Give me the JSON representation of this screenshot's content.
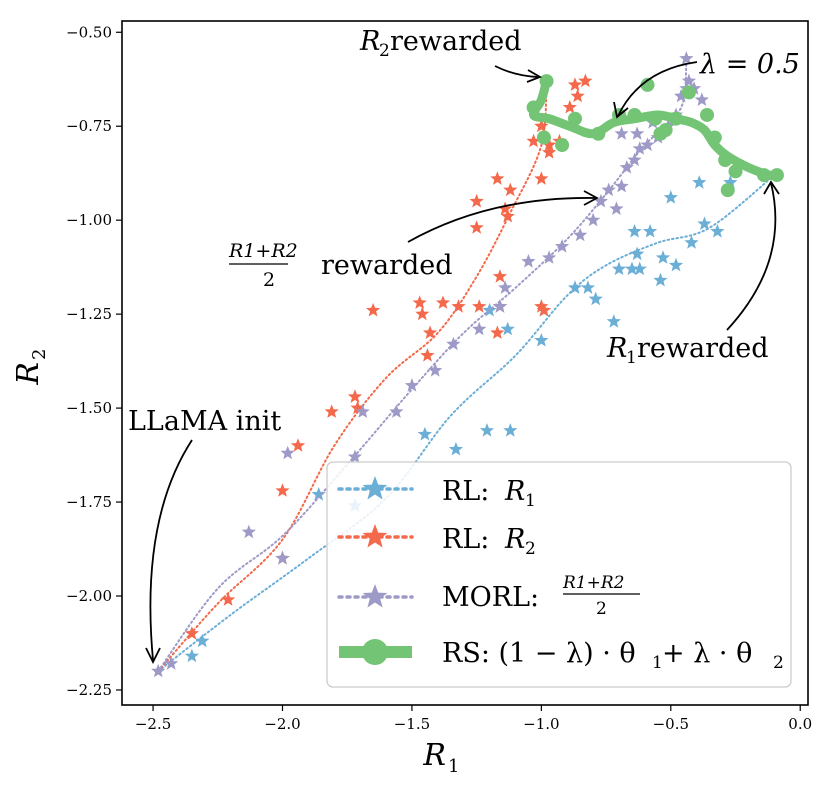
{
  "chart_data": {
    "type": "scatter",
    "xlabel": "R",
    "xlabel_sub": "1",
    "ylabel": "R",
    "ylabel_sub": "2",
    "xlim": [
      -2.62,
      0.03
    ],
    "ylim": [
      -2.29,
      -0.47
    ],
    "xticks": [
      -2.5,
      -2.0,
      -1.5,
      -1.0,
      -0.5,
      0.0
    ],
    "xtick_labels": [
      "−2.5",
      "−2.0",
      "−1.5",
      "−1.0",
      "−0.5",
      "0.0"
    ],
    "yticks": [
      -0.5,
      -0.75,
      -1.0,
      -1.25,
      -1.5,
      -1.75,
      -2.0,
      -2.25
    ],
    "ytick_labels": [
      "−0.50",
      "−0.75",
      "−1.00",
      "−1.25",
      "−1.50",
      "−1.75",
      "−2.00",
      "−2.25"
    ],
    "legend_position": "lower-right",
    "series": [
      {
        "name": "RL: R1",
        "legend_label": "RL: ",
        "legend_math": "R",
        "legend_sub": "1",
        "color": "#6baed6",
        "marker": "star",
        "line": "dotted",
        "points": [
          [
            -2.35,
            -2.16
          ],
          [
            -2.31,
            -2.12
          ],
          [
            -2.0,
            -1.9
          ],
          [
            -1.86,
            -1.73
          ],
          [
            -1.72,
            -1.76
          ],
          [
            -1.45,
            -1.57
          ],
          [
            -1.33,
            -1.61
          ],
          [
            -1.21,
            -1.56
          ],
          [
            -1.12,
            -1.56
          ],
          [
            -1.13,
            -1.29
          ],
          [
            -1.2,
            -1.24
          ],
          [
            -1.0,
            -1.32
          ],
          [
            -0.99,
            -1.24
          ],
          [
            -0.87,
            -1.18
          ],
          [
            -0.82,
            -1.18
          ],
          [
            -0.79,
            -1.21
          ],
          [
            -0.72,
            -1.27
          ],
          [
            -0.7,
            -1.13
          ],
          [
            -0.65,
            -1.13
          ],
          [
            -0.63,
            -1.09
          ],
          [
            -0.62,
            -1.13
          ],
          [
            -0.64,
            -1.03
          ],
          [
            -0.58,
            -1.03
          ],
          [
            -0.54,
            -1.16
          ],
          [
            -0.53,
            -1.1
          ],
          [
            -0.5,
            -0.94
          ],
          [
            -0.48,
            -1.12
          ],
          [
            -0.42,
            -1.06
          ],
          [
            -0.39,
            -0.9
          ],
          [
            -0.37,
            -1.01
          ],
          [
            -0.32,
            -1.03
          ],
          [
            -0.27,
            -0.9
          ]
        ],
        "curve": [
          [
            -2.48,
            -2.2
          ],
          [
            -2.2,
            -2.05
          ],
          [
            -1.9,
            -1.9
          ],
          [
            -1.6,
            -1.74
          ],
          [
            -1.35,
            -1.52
          ],
          [
            -1.1,
            -1.36
          ],
          [
            -0.9,
            -1.2
          ],
          [
            -0.75,
            -1.12
          ],
          [
            -0.55,
            -1.06
          ],
          [
            -0.35,
            -1.02
          ],
          [
            -0.1,
            -0.88
          ]
        ]
      },
      {
        "name": "RL: R2",
        "legend_label": "RL: ",
        "legend_math": "R",
        "legend_sub": "2",
        "color": "#f4694b",
        "marker": "star",
        "line": "dotted",
        "points": [
          [
            -2.35,
            -2.1
          ],
          [
            -2.21,
            -2.01
          ],
          [
            -2.0,
            -1.9
          ],
          [
            -2.0,
            -1.72
          ],
          [
            -1.94,
            -1.6
          ],
          [
            -1.81,
            -1.51
          ],
          [
            -1.72,
            -1.47
          ],
          [
            -1.71,
            -1.5
          ],
          [
            -1.65,
            -1.24
          ],
          [
            -1.47,
            -1.22
          ],
          [
            -1.44,
            -1.36
          ],
          [
            -1.46,
            -1.25
          ],
          [
            -1.43,
            -1.3
          ],
          [
            -1.38,
            -1.22
          ],
          [
            -1.32,
            -1.23
          ],
          [
            -1.24,
            -1.23
          ],
          [
            -1.17,
            -1.3
          ],
          [
            -1.16,
            -1.15
          ],
          [
            -1.16,
            -1.23
          ],
          [
            -1.0,
            -1.23
          ],
          [
            -0.99,
            -1.24
          ],
          [
            -1.25,
            -0.95
          ],
          [
            -1.25,
            -1.02
          ],
          [
            -1.13,
            -0.99
          ],
          [
            -1.14,
            -0.97
          ],
          [
            -1.0,
            -0.89
          ],
          [
            -0.97,
            -0.8
          ],
          [
            -0.93,
            -0.79
          ],
          [
            -0.97,
            -0.82
          ],
          [
            -1.03,
            -0.79
          ],
          [
            -1.0,
            -0.75
          ],
          [
            -0.89,
            -0.7
          ],
          [
            -0.86,
            -0.67
          ],
          [
            -0.87,
            -0.64
          ],
          [
            -0.83,
            -0.63
          ],
          [
            -1.12,
            -0.92
          ],
          [
            -1.17,
            -0.89
          ]
        ],
        "curve": [
          [
            -2.48,
            -2.2
          ],
          [
            -2.25,
            -2.02
          ],
          [
            -2.0,
            -1.85
          ],
          [
            -1.8,
            -1.6
          ],
          [
            -1.6,
            -1.42
          ],
          [
            -1.4,
            -1.3
          ],
          [
            -1.25,
            -1.15
          ],
          [
            -1.12,
            -0.98
          ],
          [
            -1.0,
            -0.8
          ],
          [
            -0.98,
            -0.62
          ]
        ]
      },
      {
        "name": "MORL: (R1+R2)/2",
        "legend_label": "MORL: ",
        "legend_frac_num": "R1+R2",
        "legend_frac_den": "2",
        "color": "#9e9ac8",
        "marker": "star",
        "line": "dotted",
        "points": [
          [
            -2.48,
            -2.2
          ],
          [
            -2.43,
            -2.18
          ],
          [
            -2.13,
            -1.83
          ],
          [
            -2.0,
            -1.9
          ],
          [
            -1.98,
            -1.62
          ],
          [
            -1.72,
            -1.63
          ],
          [
            -1.69,
            -1.51
          ],
          [
            -1.56,
            -1.51
          ],
          [
            -1.5,
            -1.44
          ],
          [
            -1.41,
            -1.4
          ],
          [
            -1.34,
            -1.33
          ],
          [
            -1.24,
            -1.29
          ],
          [
            -1.16,
            -1.23
          ],
          [
            -1.14,
            -1.18
          ],
          [
            -1.05,
            -1.11
          ],
          [
            -0.97,
            -1.1
          ],
          [
            -0.92,
            -1.07
          ],
          [
            -0.85,
            -1.04
          ],
          [
            -0.8,
            -1.0
          ],
          [
            -0.77,
            -0.95
          ],
          [
            -0.74,
            -0.92
          ],
          [
            -0.71,
            -0.97
          ],
          [
            -0.69,
            -0.91
          ],
          [
            -0.67,
            -0.86
          ],
          [
            -0.64,
            -0.84
          ],
          [
            -0.62,
            -0.81
          ],
          [
            -0.59,
            -0.8
          ],
          [
            -0.57,
            -0.74
          ],
          [
            -0.55,
            -0.78
          ],
          [
            -0.51,
            -0.75
          ],
          [
            -0.48,
            -0.72
          ],
          [
            -0.46,
            -0.67
          ],
          [
            -0.44,
            -0.65
          ],
          [
            -0.41,
            -0.65
          ],
          [
            -0.38,
            -0.68
          ],
          [
            -0.43,
            -0.63
          ],
          [
            -0.44,
            -0.57
          ],
          [
            -0.63,
            -0.77
          ],
          [
            -0.69,
            -0.77
          ]
        ],
        "curve": [
          [
            -2.48,
            -2.2
          ],
          [
            -2.25,
            -1.98
          ],
          [
            -2.0,
            -1.84
          ],
          [
            -1.75,
            -1.65
          ],
          [
            -1.5,
            -1.45
          ],
          [
            -1.3,
            -1.3
          ],
          [
            -1.1,
            -1.18
          ],
          [
            -0.9,
            -1.05
          ],
          [
            -0.75,
            -0.93
          ],
          [
            -0.6,
            -0.8
          ],
          [
            -0.5,
            -0.74
          ],
          [
            -0.45,
            -0.68
          ],
          [
            -0.44,
            -0.58
          ]
        ]
      },
      {
        "name": "RS: (1-lambda)*theta1 + lambda*theta2",
        "legend_label": "RS: (1 − λ) · θ",
        "legend_tail": " + λ · θ",
        "color": "#74c476",
        "marker": "circle",
        "line": "solid",
        "points": [
          [
            -0.98,
            -0.63
          ],
          [
            -1.03,
            -0.7
          ],
          [
            -0.99,
            -0.78
          ],
          [
            -0.92,
            -0.8
          ],
          [
            -0.87,
            -0.73
          ],
          [
            -0.78,
            -0.77
          ],
          [
            -0.7,
            -0.72
          ],
          [
            -0.64,
            -0.72
          ],
          [
            -0.59,
            -0.64
          ],
          [
            -0.56,
            -0.73
          ],
          [
            -0.54,
            -0.77
          ],
          [
            -0.52,
            -0.76
          ],
          [
            -0.48,
            -0.73
          ],
          [
            -0.43,
            -0.66
          ],
          [
            -0.36,
            -0.72
          ],
          [
            -0.33,
            -0.78
          ],
          [
            -0.29,
            -0.84
          ],
          [
            -0.25,
            -0.87
          ],
          [
            -0.28,
            -0.92
          ],
          [
            -0.14,
            -0.88
          ],
          [
            -0.09,
            -0.88
          ]
        ],
        "curve": [
          [
            -0.98,
            -0.63
          ],
          [
            -1.0,
            -0.68
          ],
          [
            -1.03,
            -0.72
          ],
          [
            -0.97,
            -0.73
          ],
          [
            -0.89,
            -0.75
          ],
          [
            -0.8,
            -0.77
          ],
          [
            -0.72,
            -0.74
          ],
          [
            -0.64,
            -0.73
          ],
          [
            -0.55,
            -0.72
          ],
          [
            -0.48,
            -0.73
          ],
          [
            -0.42,
            -0.74
          ],
          [
            -0.37,
            -0.76
          ],
          [
            -0.33,
            -0.8
          ],
          [
            -0.28,
            -0.83
          ],
          [
            -0.2,
            -0.86
          ],
          [
            -0.12,
            -0.88
          ],
          [
            -0.09,
            -0.88
          ]
        ]
      }
    ],
    "annotations": [
      {
        "id": "r2-rewarded",
        "math": "R",
        "sub": "2",
        "text": " rewarded"
      },
      {
        "id": "lambda",
        "text": "λ = 0.5"
      },
      {
        "id": "mean-rewarded",
        "frac_num": "R1+R2",
        "frac_den": "2",
        "text": "rewarded"
      },
      {
        "id": "r1-rewarded",
        "math": "R",
        "sub": "1",
        "text": " rewarded"
      },
      {
        "id": "llama-init",
        "text": "LLaMA init"
      }
    ]
  }
}
